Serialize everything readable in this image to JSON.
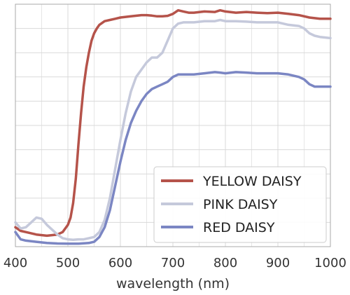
{
  "chart_data": {
    "type": "line",
    "title": "",
    "xlabel": "wavelength (nm)",
    "ylabel": "",
    "xlim": [
      400,
      1000
    ],
    "ylim": [
      0,
      1.0
    ],
    "x_ticks": [
      400,
      500,
      600,
      700,
      800,
      900,
      1000
    ],
    "x_tick_labels": [
      "400",
      "500",
      "600",
      "700",
      "800",
      "900",
      "1000"
    ],
    "y_gridlines": [
      0.1,
      0.2,
      0.3,
      0.4,
      0.5,
      0.6,
      0.7,
      0.8,
      0.9,
      1.0
    ],
    "grid": true,
    "legend_position": "bottom-right",
    "series": [
      {
        "name": "YELLOW DAISY",
        "color": "#b5534a",
        "x": [
          400,
          410,
          420,
          440,
          460,
          480,
          490,
          500,
          505,
          510,
          515,
          520,
          525,
          530,
          535,
          540,
          545,
          550,
          555,
          560,
          570,
          580,
          590,
          600,
          620,
          640,
          650,
          660,
          670,
          680,
          690,
          700,
          710,
          720,
          730,
          740,
          760,
          780,
          790,
          800,
          820,
          840,
          860,
          880,
          900,
          920,
          940,
          960,
          980,
          1000
        ],
        "y": [
          0.08,
          0.065,
          0.06,
          0.05,
          0.045,
          0.05,
          0.06,
          0.09,
          0.12,
          0.18,
          0.28,
          0.42,
          0.55,
          0.66,
          0.74,
          0.8,
          0.85,
          0.88,
          0.9,
          0.915,
          0.93,
          0.935,
          0.94,
          0.945,
          0.95,
          0.955,
          0.955,
          0.953,
          0.95,
          0.95,
          0.952,
          0.96,
          0.975,
          0.97,
          0.965,
          0.965,
          0.97,
          0.968,
          0.975,
          0.97,
          0.965,
          0.968,
          0.965,
          0.963,
          0.965,
          0.96,
          0.955,
          0.945,
          0.94,
          0.94
        ]
      },
      {
        "name": "PINK DAISY",
        "color": "#c5c9db",
        "x": [
          400,
          410,
          420,
          430,
          440,
          450,
          460,
          470,
          480,
          490,
          500,
          510,
          520,
          530,
          540,
          550,
          560,
          570,
          580,
          590,
          600,
          610,
          620,
          630,
          640,
          650,
          660,
          670,
          680,
          690,
          700,
          710,
          720,
          740,
          760,
          780,
          790,
          800,
          820,
          840,
          860,
          880,
          900,
          920,
          940,
          950,
          960,
          970,
          980,
          1000
        ],
        "y": [
          0.1,
          0.075,
          0.08,
          0.1,
          0.12,
          0.115,
          0.09,
          0.07,
          0.05,
          0.035,
          0.03,
          0.028,
          0.03,
          0.03,
          0.035,
          0.04,
          0.06,
          0.11,
          0.2,
          0.32,
          0.44,
          0.55,
          0.64,
          0.7,
          0.73,
          0.76,
          0.78,
          0.78,
          0.8,
          0.85,
          0.9,
          0.92,
          0.925,
          0.925,
          0.93,
          0.93,
          0.935,
          0.93,
          0.93,
          0.928,
          0.925,
          0.925,
          0.925,
          0.915,
          0.91,
          0.9,
          0.88,
          0.87,
          0.865,
          0.86
        ]
      },
      {
        "name": "RED DAISY",
        "color": "#7b86c3",
        "x": [
          400,
          410,
          420,
          440,
          460,
          480,
          500,
          520,
          540,
          550,
          560,
          570,
          580,
          590,
          600,
          610,
          620,
          630,
          640,
          650,
          660,
          670,
          680,
          690,
          700,
          710,
          720,
          740,
          760,
          780,
          790,
          800,
          820,
          840,
          860,
          880,
          900,
          920,
          940,
          950,
          960,
          970,
          980,
          1000
        ],
        "y": [
          0.06,
          0.03,
          0.025,
          0.02,
          0.015,
          0.013,
          0.012,
          0.012,
          0.015,
          0.02,
          0.04,
          0.08,
          0.15,
          0.25,
          0.35,
          0.44,
          0.51,
          0.56,
          0.6,
          0.63,
          0.65,
          0.66,
          0.67,
          0.68,
          0.7,
          0.71,
          0.71,
          0.71,
          0.715,
          0.72,
          0.718,
          0.715,
          0.72,
          0.718,
          0.715,
          0.715,
          0.715,
          0.71,
          0.7,
          0.69,
          0.67,
          0.66,
          0.66,
          0.66
        ]
      }
    ]
  }
}
